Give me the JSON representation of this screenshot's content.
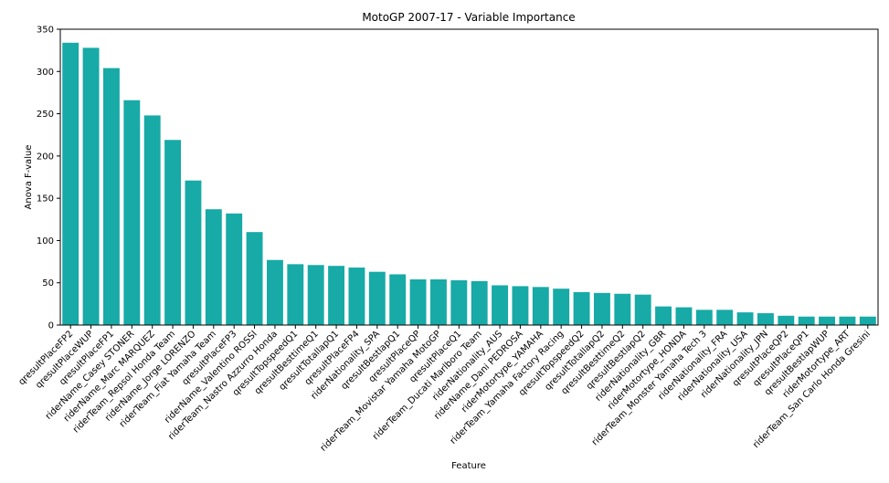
{
  "chart_data": {
    "type": "bar",
    "title": "MotoGP 2007-17 - Variable Importance",
    "xlabel": "Feature",
    "ylabel": "Anova F-value",
    "ylim": [
      0,
      350
    ],
    "yticks": [
      0,
      50,
      100,
      150,
      200,
      250,
      300,
      350
    ],
    "grid": false,
    "bar_color": "#17aaa6",
    "categories": [
      "qresultPlaceFP2",
      "qresultPlaceWUP",
      "qresultPlaceFP1",
      "riderName_Casey STONER",
      "riderName_Marc MARQUEZ",
      "riderTeam_Repsol Honda Team",
      "riderName_Jorge LORENZO",
      "riderTeam_Fiat Yamaha Team",
      "qresultPlaceFP3",
      "riderName_Valentino ROSSI",
      "riderTeam_Nastro Azzurro Honda",
      "qresultTopspeedQ1",
      "qresultBesttimeQ1",
      "qresultTotallapQ1",
      "qresultPlaceFP4",
      "riderNationality_SPA",
      "qresultBestlapQ1",
      "qresultPlaceQP",
      "riderTeam_Movistar Yamaha MotoGP",
      "qresultPlaceQ1",
      "riderTeam_Ducati Marlboro Team",
      "riderNationality_AUS",
      "riderName_Dani PEDROSA",
      "riderMotortype_YAMAHA",
      "riderTeam_Yamaha Factory Racing",
      "qresultTopspeedQ2",
      "qresultTotallapQ2",
      "qresultBesttimeQ2",
      "qresultBestlapQ2",
      "riderNationality_GBR",
      "riderMotortype_HONDA",
      "riderTeam_Monster Yamaha Tech 3",
      "riderNationality_FRA",
      "riderNationality_USA",
      "riderNationality_JPN",
      "qresultPlaceQP2",
      "qresultPlaceQP1",
      "qresultBestlapWUP",
      "riderMotortype_ART",
      "riderTeam_San Carlo Honda Gresini"
    ],
    "values": [
      334,
      328,
      304,
      266,
      248,
      219,
      171,
      137,
      132,
      110,
      77,
      72,
      71,
      70,
      68,
      63,
      60,
      54,
      54,
      53,
      52,
      47,
      46,
      45,
      43,
      39,
      38,
      37,
      36,
      22,
      21,
      18,
      18,
      15,
      14,
      11,
      10,
      10,
      10,
      10
    ]
  }
}
